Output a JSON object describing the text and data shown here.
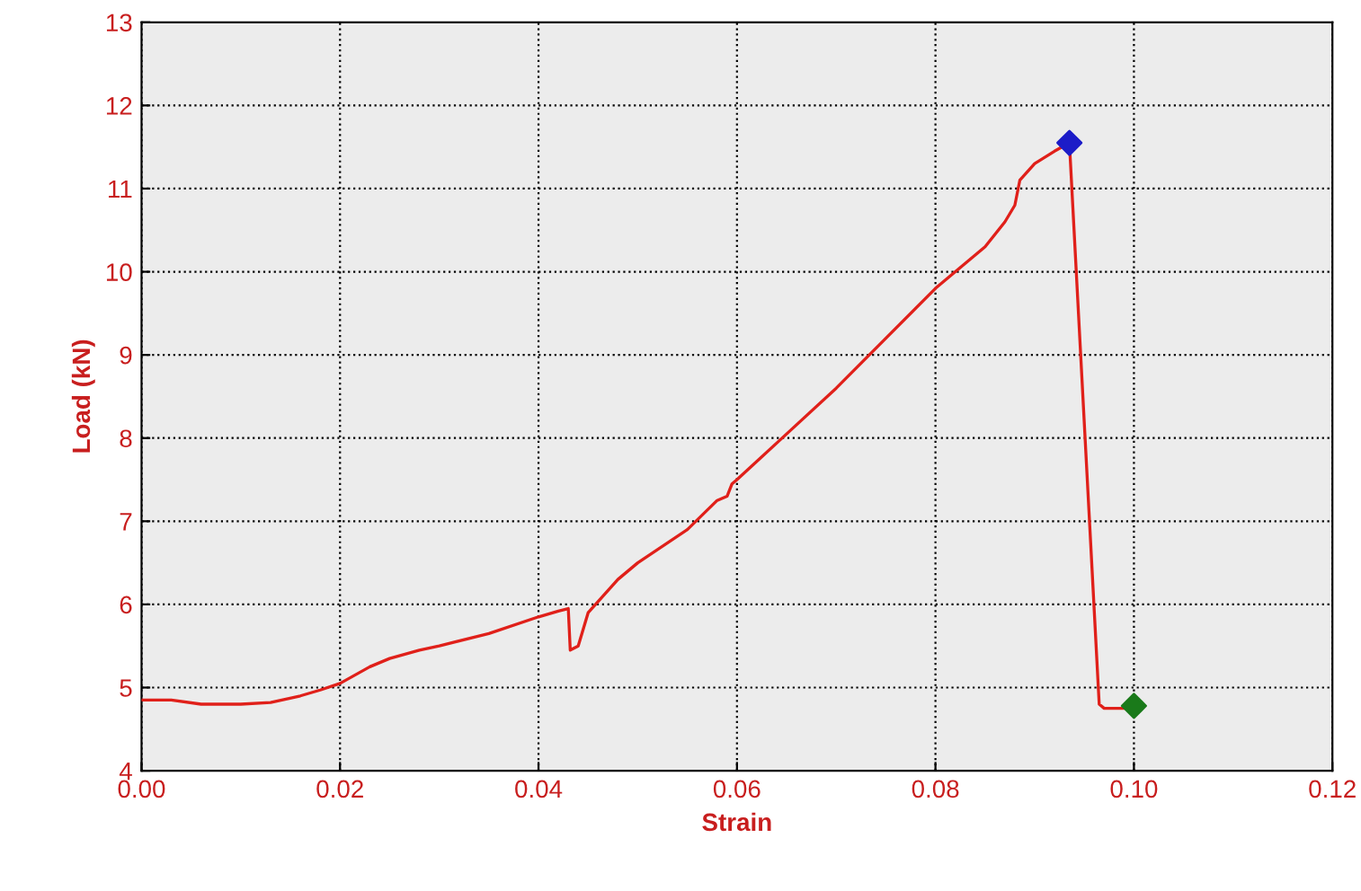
{
  "chart_data": {
    "type": "line",
    "xlabel": "Strain",
    "ylabel": "Load (kN)",
    "xlim": [
      0,
      0.12
    ],
    "ylim": [
      4,
      13
    ],
    "xticks": [
      {
        "value": 0,
        "label": "0.00"
      },
      {
        "value": 0.02,
        "label": "0.02"
      },
      {
        "value": 0.04,
        "label": "0.04"
      },
      {
        "value": 0.06,
        "label": "0.06"
      },
      {
        "value": 0.08,
        "label": "0.08"
      },
      {
        "value": 0.1,
        "label": "0.10"
      },
      {
        "value": 0.12,
        "label": "0.12"
      }
    ],
    "yticks": [
      4,
      5,
      6,
      7,
      8,
      9,
      10,
      11,
      12,
      13
    ],
    "grid": true,
    "legend": false,
    "series": [
      {
        "color": "#e0201a",
        "marker": "none",
        "x": [
          0,
          0.001,
          0.003,
          0.006,
          0.01,
          0.013,
          0.016,
          0.018,
          0.02,
          0.023,
          0.025,
          0.028,
          0.03,
          0.035,
          0.04,
          0.042,
          0.043,
          0.0432,
          0.044,
          0.045,
          0.048,
          0.05,
          0.055,
          0.058,
          0.059,
          0.0595,
          0.06,
          0.065,
          0.07,
          0.075,
          0.08,
          0.085,
          0.087,
          0.088,
          0.0885,
          0.09,
          0.092,
          0.0935,
          0.0965,
          0.097,
          0.099
        ],
        "values": [
          4.85,
          4.85,
          4.85,
          4.8,
          4.8,
          4.82,
          4.9,
          4.97,
          5.05,
          5.25,
          5.35,
          5.45,
          5.5,
          5.65,
          5.85,
          5.92,
          5.95,
          5.45,
          5.5,
          5.9,
          6.3,
          6.5,
          6.9,
          7.25,
          7.3,
          7.45,
          7.5,
          8.05,
          8.6,
          9.2,
          9.8,
          10.3,
          10.6,
          10.8,
          11.1,
          11.3,
          11.45,
          11.55,
          4.8,
          4.75,
          4.75
        ]
      },
      {
        "type": "scatter",
        "color": "#1c1cc8",
        "marker": "diamond",
        "x": [
          0.0935
        ],
        "values": [
          11.55
        ]
      },
      {
        "type": "scatter",
        "color": "#1a7a1a",
        "marker": "diamond",
        "x": [
          0.1
        ],
        "values": [
          4.78
        ]
      }
    ]
  }
}
